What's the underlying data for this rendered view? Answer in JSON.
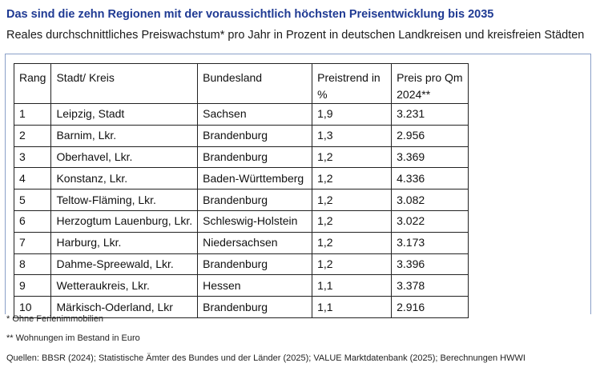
{
  "title": "Das sind die zehn Regionen mit der voraussichtlich höchsten Preisentwicklung bis 2035",
  "subtitle": "Reales durchschnittliches Preiswachstum* pro Jahr in Prozent in deutschen Landkreisen und kreisfreien Städten",
  "table": {
    "headers": {
      "rank": "Rang",
      "city": "Stadt/ Kreis",
      "state": "Bundesland",
      "trend_line1": "Preistrend in",
      "trend_line2": "%",
      "price_line1": "Preis pro Qm",
      "price_line2": "2024**"
    },
    "rows": [
      {
        "rank": "1",
        "city": "Leipzig, Stadt",
        "state": "Sachsen",
        "trend": "1,9",
        "price": "3.231"
      },
      {
        "rank": "2",
        "city": "Barnim, Lkr.",
        "state": "Brandenburg",
        "trend": "1,3",
        "price": "2.956"
      },
      {
        "rank": "3",
        "city": "Oberhavel, Lkr.",
        "state": "Brandenburg",
        "trend": "1,2",
        "price": "3.369"
      },
      {
        "rank": "4",
        "city": "Konstanz, Lkr.",
        "state": "Baden-Württemberg",
        "trend": "1,2",
        "price": "4.336"
      },
      {
        "rank": "5",
        "city": "Teltow-Fläming, Lkr.",
        "state": "Brandenburg",
        "trend": "1,2",
        "price": "3.082"
      },
      {
        "rank": "6",
        "city": "Herzogtum Lauenburg, Lkr.",
        "state": "Schleswig-Holstein",
        "trend": "1,2",
        "price": "3.022"
      },
      {
        "rank": "7",
        "city": "Harburg, Lkr.",
        "state": "Niedersachsen",
        "trend": "1,2",
        "price": "3.173"
      },
      {
        "rank": "8",
        "city": "Dahme-Spreewald, Lkr.",
        "state": "Brandenburg",
        "trend": "1,2",
        "price": "3.396"
      },
      {
        "rank": "9",
        "city": "Wetteraukreis, Lkr.",
        "state": "Hessen",
        "trend": "1,1",
        "price": "3.378"
      },
      {
        "rank": "10",
        "city": "Märkisch-Oderland, Lkr",
        "state": "Brandenburg",
        "trend": "1,1",
        "price": "2.916"
      }
    ]
  },
  "notes": {
    "note1": "* Ohne Ferienimmobilien",
    "note2": "** Wohnungen im Bestand in Euro",
    "sources": "Quellen: BBSR (2024); Statistische Ämter des Bundes und der Länder (2025); VALUE Marktdatenbank (2025); Berechnungen HWWI"
  }
}
